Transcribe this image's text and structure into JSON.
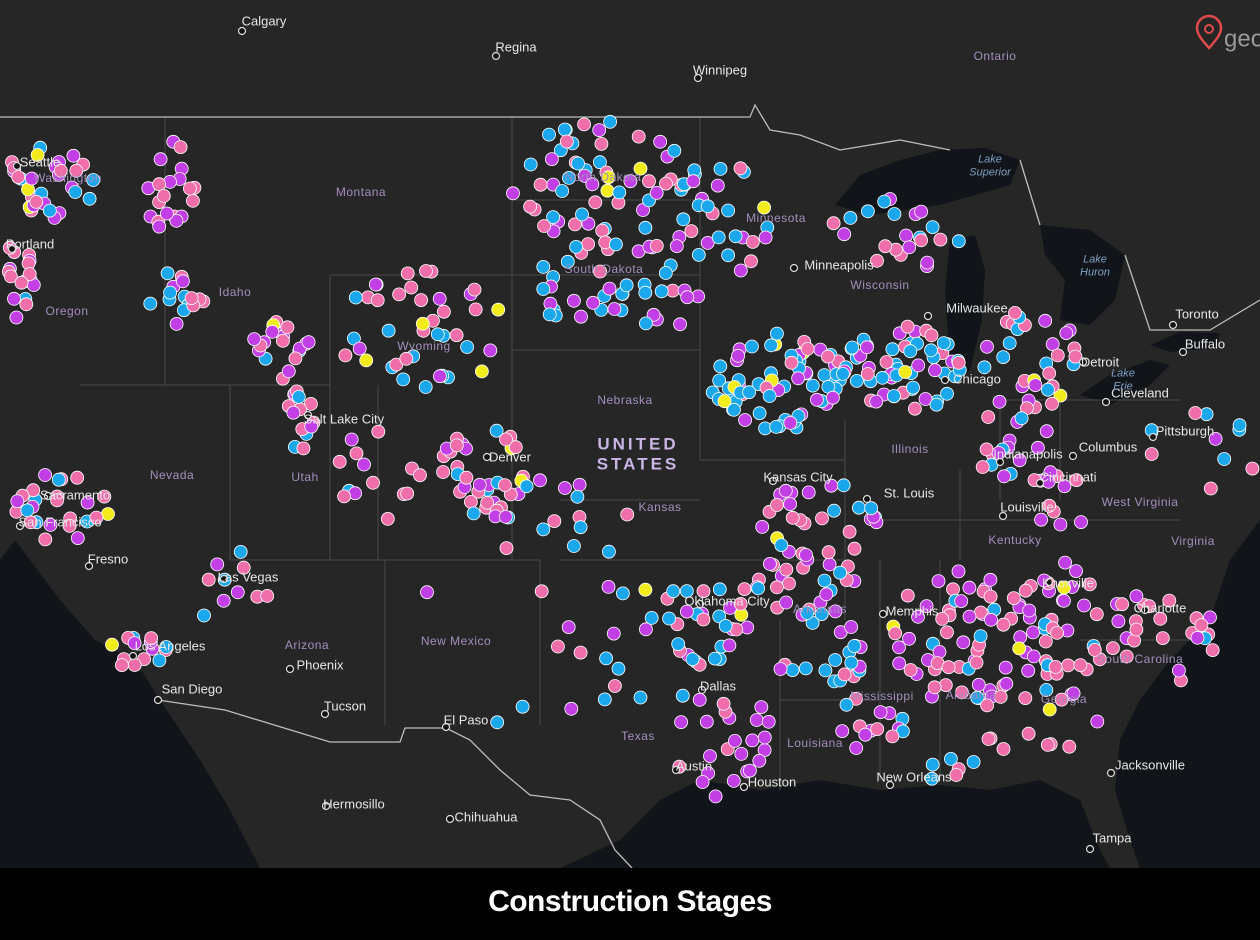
{
  "logo": "geo",
  "title": "Construction Stages",
  "map": {
    "country_label": [
      "UNITED",
      "STATES"
    ],
    "cities": [
      "Calgary",
      "Regina",
      "Winnipeg",
      "Toronto",
      "Buffalo",
      "Cleveland",
      "Pittsburgh",
      "Columbus",
      "Indianapolis",
      "Cincinnati",
      "Louisville",
      "Knoxville",
      "Charlotte",
      "Jacksonville",
      "Tampa",
      "New Orleans",
      "Memphis",
      "St. Louis",
      "Kansas City",
      "Oklahoma City",
      "Dallas",
      "Austin",
      "Houston",
      "El Paso",
      "Chihuahua",
      "Hermosillo",
      "Tucson",
      "Phoenix",
      "San Diego",
      "Los Angeles",
      "Las Vegas",
      "Fresno",
      "San Francisco",
      "Sacramento",
      "Salt Lake City",
      "Denver",
      "Minneapolis",
      "Milwaukee",
      "Chicago",
      "Detroit",
      "Portland",
      "Seattle"
    ],
    "regions": [
      "Ontario",
      "Montana",
      "North Dakota",
      "South Dakota",
      "Minnesota",
      "Wisconsin",
      "Idaho",
      "Oregon",
      "Washington",
      "Wyoming",
      "Nebraska",
      "Illinois",
      "Nevada",
      "Utah",
      "Kansas",
      "Kentucky",
      "West Virginia",
      "Virginia",
      "Arizona",
      "New Mexico",
      "Texas",
      "Arkansas",
      "Louisiana",
      "Mississippi",
      "Alabama",
      "Georgia",
      "South Carolina"
    ],
    "water": [
      [
        "Lake",
        "Superior"
      ],
      [
        "Lake",
        "Huron"
      ],
      [
        "Lake",
        "Erie"
      ]
    ]
  }
}
